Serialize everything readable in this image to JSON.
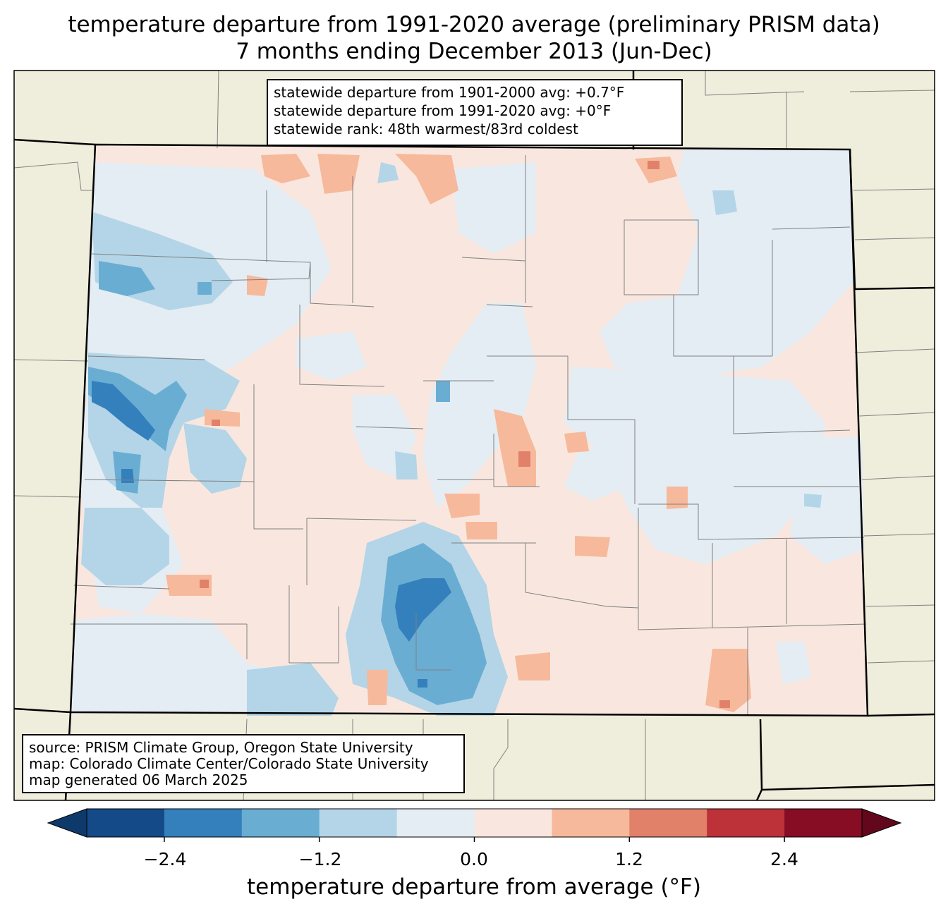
{
  "title": {
    "line1": "temperature departure from 1991-2020 average (preliminary PRISM data)",
    "line2": "7 months ending December 2013 (Jun-Dec)"
  },
  "stats": {
    "line1": "statewide departure from 1901-2000 avg: +0.7°F",
    "line2": "statewide departure from 1991-2020 avg: +0°F",
    "line3": "statewide rank: 48th warmest/83rd coldest"
  },
  "source": {
    "line1": "source: PRISM Climate Group, Oregon State University",
    "line2": "map: Colorado Climate Center/Colorado State University",
    "line3": "map generated 06 March 2025"
  },
  "colorbar": {
    "label": "temperature departure from average (°F)",
    "ticks": [
      "−2.4",
      "−1.2",
      "0.0",
      "1.2",
      "2.4"
    ],
    "levels": [
      -3.0,
      -2.4,
      -1.8,
      -1.2,
      -0.6,
      0.0,
      0.6,
      1.2,
      1.8,
      2.4,
      3.0
    ],
    "colors": [
      "#0d3a6b",
      "#144a87",
      "#3380bd",
      "#6aadd3",
      "#b3d5e7",
      "#e4edf4",
      "#f9e7df",
      "#f7b99b",
      "#e1816a",
      "#bd3139",
      "#860d24",
      "#62071c"
    ]
  },
  "map_colors": {
    "land": "#efeddb",
    "state_border": "#000000",
    "county_border": "#808080"
  }
}
